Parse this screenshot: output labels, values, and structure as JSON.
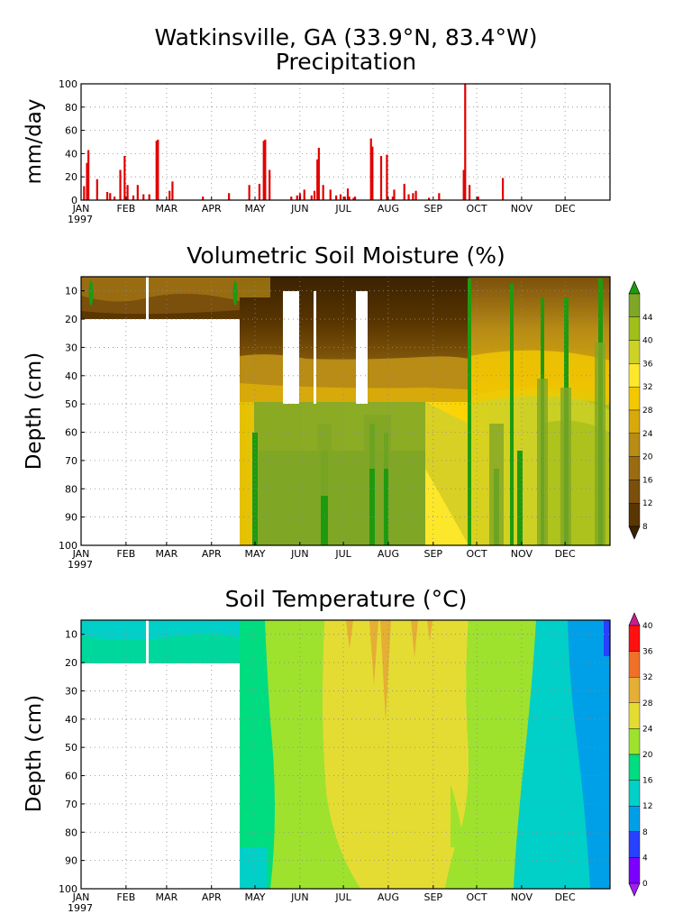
{
  "figure": {
    "title_line1": "Watkinsville, GA  (33.9°N, 83.4°W)",
    "title_line2": "Precipitation",
    "year_label": "1997",
    "months": [
      "JAN",
      "FEB",
      "MAR",
      "APR",
      "MAY",
      "JUN",
      "JUL",
      "AUG",
      "SEP",
      "OCT",
      "NOV",
      "DEC"
    ]
  },
  "chart_data": [
    {
      "type": "bar",
      "title": "Precipitation",
      "ylabel": "mm/day",
      "xlabel": "",
      "ylim": [
        0,
        100
      ],
      "yticks": [
        0,
        20,
        40,
        60,
        80,
        100
      ],
      "color": "#e00000",
      "x_unit": "day of year 1997",
      "days": [
        3,
        5,
        6,
        12,
        19,
        21,
        24,
        28,
        31,
        33,
        37,
        40,
        44,
        48,
        53,
        54,
        62,
        64,
        85,
        103,
        117,
        124,
        127,
        128,
        131,
        146,
        150,
        152,
        155,
        160,
        162,
        164,
        165,
        168,
        173,
        177,
        180,
        183,
        185,
        186,
        189,
        190,
        201,
        202,
        208,
        212,
        216,
        217,
        224,
        227,
        230,
        232,
        241,
        248,
        265,
        266,
        269,
        275,
        292
      ],
      "values": [
        12,
        32,
        43,
        18,
        7,
        6,
        3,
        26,
        38,
        13,
        4,
        13,
        5,
        5,
        51,
        52,
        8,
        16,
        3,
        6,
        13,
        14,
        51,
        52,
        26,
        3,
        4,
        6,
        9,
        4,
        8,
        35,
        45,
        13,
        9,
        4,
        5,
        3,
        10,
        3,
        2,
        3,
        53,
        46,
        38,
        39,
        3,
        9,
        14,
        5,
        6,
        8,
        2,
        6,
        26,
        100,
        13,
        3,
        19
      ]
    },
    {
      "type": "heatmap",
      "title": "Volumetric Soil Moisture (%)",
      "ylabel": "Depth (cm)",
      "x_axis": "date (1997)",
      "y_axis": "depth (cm)",
      "ylim": [
        100,
        5
      ],
      "yticks": [
        10,
        20,
        30,
        40,
        50,
        60,
        70,
        80,
        90,
        100
      ],
      "colorbar": {
        "levels": [
          8,
          12,
          16,
          20,
          24,
          28,
          32,
          36,
          40,
          44
        ],
        "colors": [
          "#3b2200",
          "#5a3600",
          "#7b4f0c",
          "#9a6c12",
          "#b88c15",
          "#d8a90a",
          "#f4c800",
          "#fde72a",
          "#cdd227",
          "#a0bf1a",
          "#80a626",
          "#1e9a10"
        ]
      },
      "missing": "early JAN-APR below 20 cm and several MAY-JUL gaps (white)"
    },
    {
      "type": "heatmap",
      "title": "Soil Temperature (°C)",
      "ylabel": "Depth (cm)",
      "x_axis": "date (1997)",
      "y_axis": "depth (cm)",
      "ylim": [
        100,
        5
      ],
      "yticks": [
        10,
        20,
        30,
        40,
        50,
        60,
        70,
        80,
        90,
        100
      ],
      "colorbar": {
        "levels": [
          0,
          4,
          8,
          12,
          16,
          20,
          24,
          28,
          32,
          36,
          40
        ],
        "colors": [
          "#a020f0",
          "#7c00ff",
          "#2840ff",
          "#00a0e8",
          "#00d0c8",
          "#00dc80",
          "#9ee22e",
          "#e4dc32",
          "#e5ae34",
          "#f07028",
          "#ff1010",
          "#c81e8c"
        ]
      }
    }
  ]
}
